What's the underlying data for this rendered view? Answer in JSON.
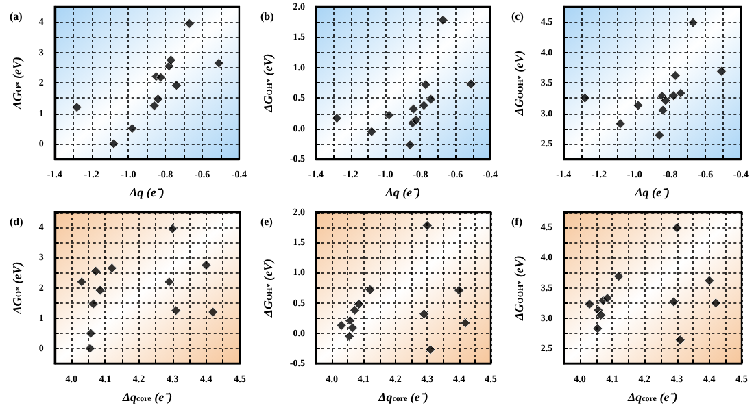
{
  "chart_data": [
    {
      "type": "scatter",
      "title": "(a)",
      "xlabel": "Δq (e⁻)",
      "ylabel": "ΔG$_{O*}$ (eV)",
      "marker": "diamond",
      "grid": true,
      "xlim": [
        -1.4,
        -0.4
      ],
      "ylim": [
        -0.5,
        4.5
      ],
      "xticks": [
        -1.4,
        {
          "value": -1.3,
          "label": null
        },
        -1.2,
        {
          "value": -1.1,
          "label": null
        },
        {
          "value": -1,
          "label": "-1.0"
        },
        {
          "value": -0.9,
          "label": null
        },
        -0.8,
        {
          "value": -0.7,
          "label": null
        },
        -0.6,
        {
          "value": -0.5,
          "label": null
        },
        -0.4
      ],
      "yticks": [
        {
          "value": -0.5,
          "label": null
        },
        0,
        {
          "value": 0.5,
          "label": null
        },
        1,
        {
          "value": 1.5,
          "label": null
        },
        2,
        {
          "value": 2.5,
          "label": null
        },
        3,
        {
          "value": 3.5,
          "label": null
        },
        4,
        {
          "value": 4.5,
          "label": null
        }
      ],
      "series": [
        {
          "color": "#000000",
          "x": [
            -1.28,
            -1.08,
            -0.98,
            -0.86,
            -0.84,
            -0.85,
            -0.825,
            -0.78,
            -0.77,
            -0.74,
            -0.67,
            -0.51
          ],
          "values": [
            1.2,
            0,
            0.5,
            1.25,
            1.47,
            2.21,
            2.18,
            2.55,
            2.75,
            1.92,
            3.95,
            2.65
          ]
        }
      ]
    },
    {
      "type": "scatter",
      "title": "(b)",
      "xlabel": "Δq (e⁻)",
      "ylabel": "ΔG$_{OH*}$ (eV)",
      "marker": "diamond",
      "grid": true,
      "xlim": [
        -1.4,
        -0.4
      ],
      "ylim": [
        -0.5,
        2
      ],
      "xticks": [
        -1.4,
        {
          "value": -1.3,
          "label": null
        },
        -1.2,
        {
          "value": -1.1,
          "label": null
        },
        {
          "value": -1,
          "label": "-1.0"
        },
        {
          "value": -0.9,
          "label": null
        },
        -0.8,
        {
          "value": -0.7,
          "label": null
        },
        -0.6,
        {
          "value": -0.5,
          "label": null
        },
        -0.4
      ],
      "yticks": [
        -0.5,
        {
          "value": -0.25,
          "label": null
        },
        {
          "value": 0,
          "label": "0.0"
        },
        {
          "value": 0.25,
          "label": null
        },
        0.5,
        {
          "value": 0.75,
          "label": null
        },
        {
          "value": 1,
          "label": "1.0"
        },
        {
          "value": 1.25,
          "label": null
        },
        1.5,
        {
          "value": 1.75,
          "label": null
        },
        {
          "value": 2,
          "label": "2.0"
        }
      ],
      "series": [
        {
          "color": "#000000",
          "x": [
            -1.28,
            -1.08,
            -0.98,
            -0.86,
            -0.845,
            -0.84,
            -0.825,
            -0.78,
            -0.77,
            -0.74,
            -0.67,
            -0.51
          ],
          "values": [
            0.17,
            -0.05,
            0.22,
            -0.27,
            0.09,
            0.32,
            0.14,
            0.38,
            0.72,
            0.48,
            1.78,
            0.73
          ]
        }
      ]
    },
    {
      "type": "scatter",
      "title": "(c)",
      "xlabel": "Δq (e⁻)",
      "ylabel": "ΔG$_{OOH*}$ (eV)",
      "marker": "diamond",
      "grid": true,
      "xlim": [
        -1.4,
        -0.4
      ],
      "ylim": [
        2.25,
        4.75
      ],
      "xticks": [
        -1.4,
        {
          "value": -1.3,
          "label": null
        },
        -1.2,
        {
          "value": -1.1,
          "label": null
        },
        {
          "value": -1,
          "label": "-1.0"
        },
        {
          "value": -0.9,
          "label": null
        },
        -0.8,
        {
          "value": -0.7,
          "label": null
        },
        -0.6,
        {
          "value": -0.5,
          "label": null
        },
        -0.4
      ],
      "yticks": [
        {
          "value": 2.25,
          "label": null
        },
        2.5,
        {
          "value": 2.75,
          "label": null
        },
        {
          "value": 3,
          "label": "3.0"
        },
        {
          "value": 3.25,
          "label": null
        },
        3.5,
        {
          "value": 3.75,
          "label": null
        },
        {
          "value": 4,
          "label": "4.0"
        },
        {
          "value": 4.25,
          "label": null
        },
        4.5,
        {
          "value": 4.75,
          "label": null
        }
      ],
      "series": [
        {
          "color": "#000000",
          "x": [
            -1.28,
            -1.08,
            -0.98,
            -0.86,
            -0.84,
            -0.845,
            -0.825,
            -0.78,
            -0.77,
            -0.74,
            -0.67,
            -0.51
          ],
          "values": [
            3.25,
            2.83,
            3.13,
            2.64,
            3.05,
            3.28,
            3.21,
            3.29,
            3.62,
            3.33,
            4.49,
            3.69
          ]
        }
      ]
    },
    {
      "type": "scatter",
      "title": "(d)",
      "xlabel": "Δq$_{core}$ (e⁻)",
      "ylabel": "ΔG$_{O*}$ (eV)",
      "marker": "diamond",
      "grid": true,
      "xlim": [
        3.95,
        4.5
      ],
      "ylim": [
        -0.5,
        4.5
      ],
      "xticks": [
        {
          "value": 3.95,
          "label": null
        },
        {
          "value": 4,
          "label": "4.0"
        },
        {
          "value": 4.05,
          "label": null
        },
        4.1,
        {
          "value": 4.15,
          "label": null
        },
        4.2,
        {
          "value": 4.25,
          "label": null
        },
        4.3,
        {
          "value": 4.35,
          "label": null
        },
        4.4,
        {
          "value": 4.45,
          "label": null
        },
        4.5
      ],
      "yticks": [
        {
          "value": -0.5,
          "label": null
        },
        0,
        {
          "value": 0.5,
          "label": null
        },
        1,
        {
          "value": 1.5,
          "label": null
        },
        2,
        {
          "value": 2.5,
          "label": null
        },
        3,
        {
          "value": 3.5,
          "label": null
        },
        4,
        {
          "value": 4.5,
          "label": null
        }
      ],
      "series": [
        {
          "color": "#000000",
          "x": [
            4.03,
            4.055,
            4.057,
            4.065,
            4.072,
            4.085,
            4.12,
            4.29,
            4.3,
            4.31,
            4.4,
            4.42
          ],
          "values": [
            2.2,
            0,
            0.5,
            1.47,
            2.55,
            1.92,
            2.65,
            2.2,
            3.95,
            1.25,
            2.75,
            1.2
          ]
        }
      ]
    },
    {
      "type": "scatter",
      "title": "(e)",
      "xlabel": "Δq$_{core}$ (e⁻)",
      "ylabel": "ΔG$_{OH*}$ (eV)",
      "marker": "diamond",
      "grid": true,
      "xlim": [
        3.95,
        4.5
      ],
      "ylim": [
        -0.5,
        2
      ],
      "xticks": [
        {
          "value": 3.95,
          "label": null
        },
        {
          "value": 4,
          "label": "4.0"
        },
        {
          "value": 4.05,
          "label": null
        },
        4.1,
        {
          "value": 4.15,
          "label": null
        },
        4.2,
        {
          "value": 4.25,
          "label": null
        },
        4.3,
        {
          "value": 4.35,
          "label": null
        },
        4.4,
        {
          "value": 4.45,
          "label": null
        },
        4.5
      ],
      "yticks": [
        -0.5,
        {
          "value": -0.25,
          "label": null
        },
        {
          "value": 0,
          "label": "0.0"
        },
        {
          "value": 0.25,
          "label": null
        },
        0.5,
        {
          "value": 0.75,
          "label": null
        },
        {
          "value": 1,
          "label": "1.0"
        },
        {
          "value": 1.25,
          "label": null
        },
        1.5,
        {
          "value": 1.75,
          "label": null
        },
        {
          "value": 2,
          "label": "2.0"
        }
      ],
      "series": [
        {
          "color": "#000000",
          "x": [
            4.03,
            4.055,
            4.057,
            4.065,
            4.072,
            4.085,
            4.12,
            4.29,
            4.3,
            4.31,
            4.4,
            4.42
          ],
          "values": [
            0.13,
            -0.05,
            0.21,
            0.09,
            0.38,
            0.48,
            0.72,
            0.32,
            1.78,
            -0.27,
            0.71,
            0.17
          ]
        }
      ]
    },
    {
      "type": "scatter",
      "title": "(f)",
      "xlabel": "Δq$_{core}$ (e⁻)",
      "ylabel": "ΔG$_{OOH*}$ (eV)",
      "marker": "diamond",
      "grid": true,
      "xlim": [
        3.95,
        4.5
      ],
      "ylim": [
        2.25,
        4.75
      ],
      "xticks": [
        {
          "value": 3.95,
          "label": null
        },
        {
          "value": 4,
          "label": "4.0"
        },
        {
          "value": 4.05,
          "label": null
        },
        4.1,
        {
          "value": 4.15,
          "label": null
        },
        4.2,
        {
          "value": 4.25,
          "label": null
        },
        4.3,
        {
          "value": 4.35,
          "label": null
        },
        4.4,
        {
          "value": 4.45,
          "label": null
        },
        4.5
      ],
      "yticks": [
        {
          "value": 2.25,
          "label": null
        },
        2.5,
        {
          "value": 2.75,
          "label": null
        },
        {
          "value": 3,
          "label": "3.0"
        },
        {
          "value": 3.25,
          "label": null
        },
        3.5,
        {
          "value": 3.75,
          "label": null
        },
        {
          "value": 4,
          "label": "4.0"
        },
        {
          "value": 4.25,
          "label": null
        },
        4.5,
        {
          "value": 4.75,
          "label": null
        }
      ],
      "series": [
        {
          "color": "#000000",
          "x": [
            4.03,
            4.055,
            4.057,
            4.065,
            4.072,
            4.085,
            4.12,
            4.29,
            4.3,
            4.31,
            4.4,
            4.42
          ],
          "values": [
            3.23,
            2.83,
            3.13,
            3.05,
            3.29,
            3.33,
            3.69,
            3.27,
            4.49,
            2.64,
            3.62,
            3.25
          ]
        }
      ]
    }
  ]
}
